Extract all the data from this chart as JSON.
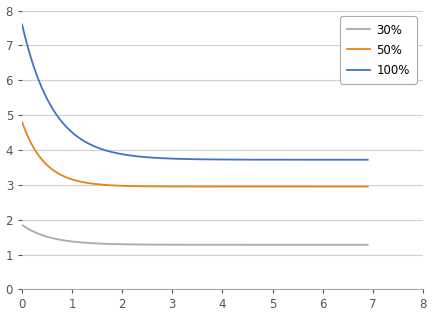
{
  "title": "",
  "xlabel": "",
  "ylabel": "",
  "xlim": [
    0,
    8
  ],
  "ylim": [
    0,
    8
  ],
  "xticks": [
    0,
    1,
    2,
    3,
    4,
    5,
    6,
    7,
    8
  ],
  "yticks": [
    0,
    1,
    2,
    3,
    4,
    5,
    6,
    7,
    8
  ],
  "series": [
    {
      "label": "30%",
      "color": "#AAAAAA",
      "y0": 1.85,
      "decay": 1.8,
      "yfloor": 1.28
    },
    {
      "label": "50%",
      "color": "#E8841A",
      "y0": 4.8,
      "decay": 2.2,
      "yfloor": 2.95
    },
    {
      "label": "100%",
      "color": "#4472C4",
      "y0": 7.6,
      "decay": 1.6,
      "yfloor": 3.72
    }
  ],
  "legend_loc": "upper right",
  "grid_color": "#D0D0D0",
  "background_color": "#FFFFFF",
  "fig_bg_color": "#FFFFFF",
  "spine_color": "#AAAAAA",
  "tick_color": "#555555",
  "tick_fontsize": 8.5,
  "line_width": 1.3,
  "legend_fontsize": 8.5,
  "xdata_end": 6.9
}
